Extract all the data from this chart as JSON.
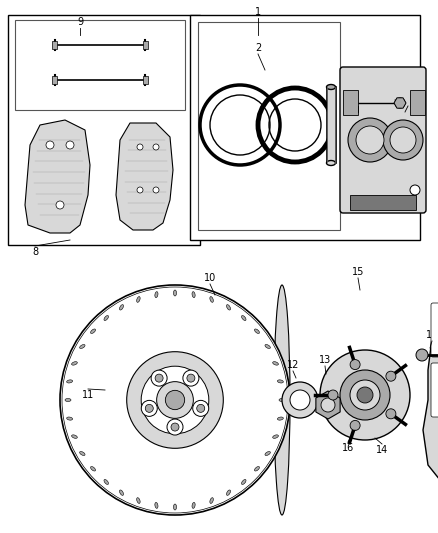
{
  "bg_color": "#ffffff",
  "line_color": "#000000",
  "fig_width": 4.38,
  "fig_height": 5.33,
  "dpi": 100,
  "gray_light": "#d8d8d8",
  "gray_mid": "#aaaaaa",
  "gray_dark": "#777777",
  "gray_fill": "#cccccc"
}
